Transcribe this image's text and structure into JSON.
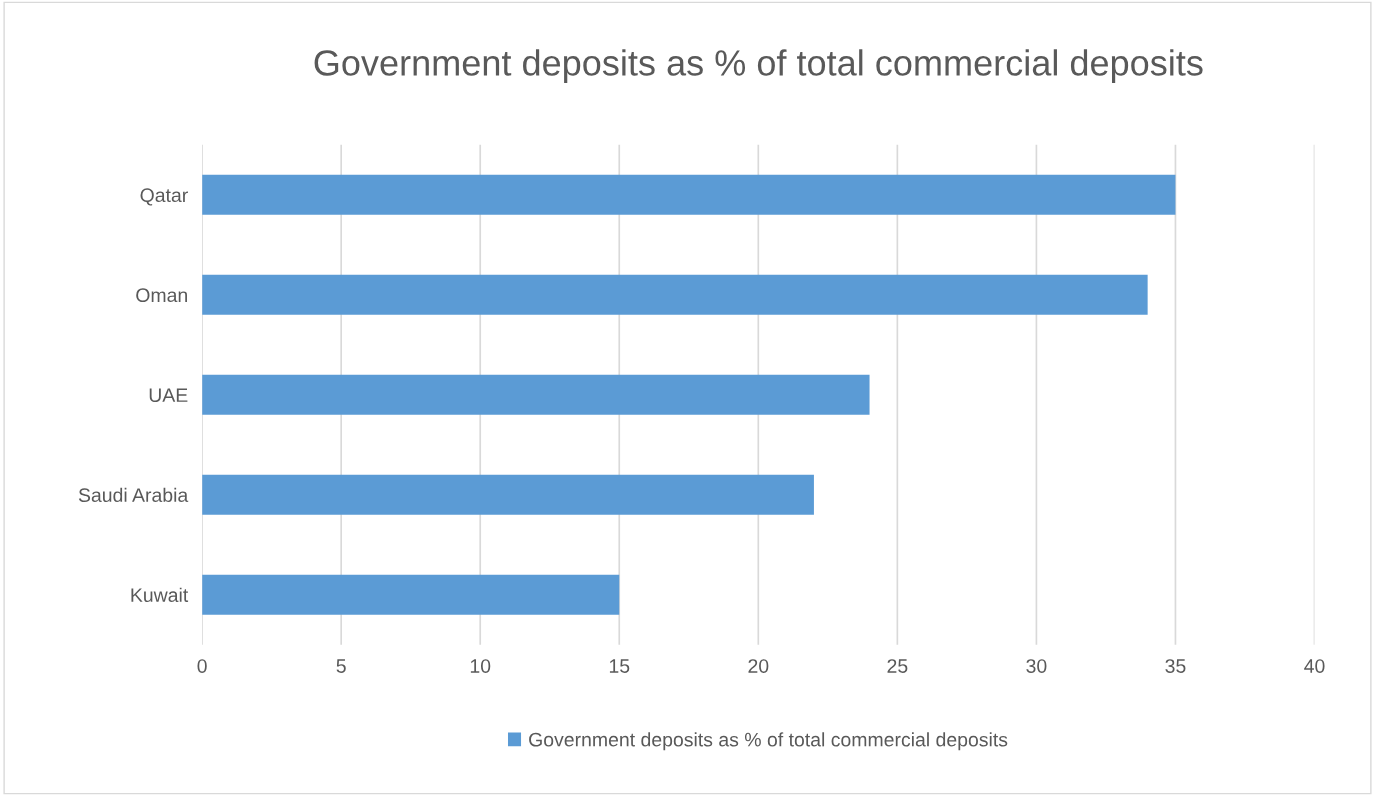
{
  "chart_data": {
    "type": "bar",
    "orientation": "horizontal",
    "title": "Government deposits as % of total commercial deposits",
    "categories": [
      "Qatar",
      "Oman",
      "UAE",
      "Saudi Arabia",
      "Kuwait"
    ],
    "series": [
      {
        "name": "Government deposits as % of total commercial deposits",
        "color": "#5b9bd5",
        "values": [
          35,
          34,
          24,
          22,
          15
        ]
      }
    ],
    "xlim": [
      0,
      40
    ],
    "xticks": [
      0,
      5,
      10,
      15,
      20,
      25,
      30,
      35,
      40
    ],
    "grid": "x",
    "legend": "bottom"
  }
}
